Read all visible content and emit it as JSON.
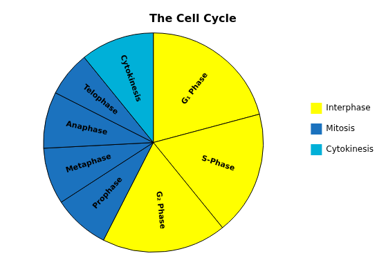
{
  "chart_data": {
    "type": "pie",
    "title": "The Cell Cycle",
    "categories": [
      "G₁ Phase",
      "S-Phase",
      "G₂ Phase",
      "Prophase",
      "Metaphase",
      "Anaphase",
      "Telophase",
      "Cytokinesis"
    ],
    "values": [
      25,
      22,
      22,
      10,
      10,
      10,
      8,
      13
    ],
    "colors": [
      "#FFFF00",
      "#FFFF00",
      "#FFFF00",
      "#1B72BE",
      "#1B72BE",
      "#1B72BE",
      "#1B72BE",
      "#00B0D8"
    ],
    "groups": [
      {
        "name": "Interphase",
        "color": "#FFFF00"
      },
      {
        "name": "Mitosis",
        "color": "#1B72BE"
      },
      {
        "name": "Cytokinesis",
        "color": "#00B0D8"
      }
    ],
    "legend": "right"
  }
}
